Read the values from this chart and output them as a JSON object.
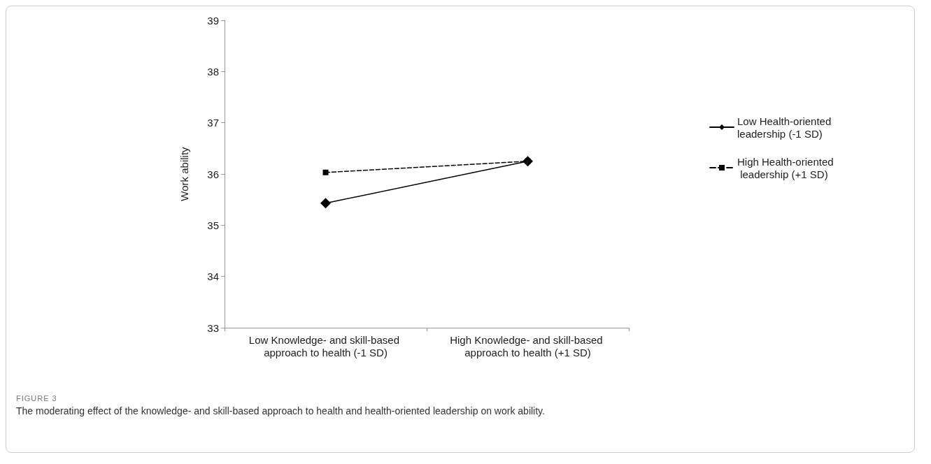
{
  "chart_data": {
    "type": "line",
    "ylabel": "Work ability",
    "categories": [
      "Low Knowledge- and skill-based approach to health (-1 SD)",
      "High Knowledge- and skill-based approach to health (+1 SD)"
    ],
    "series": [
      {
        "name": "Low Health-oriented leadership (-1 SD)",
        "color": "#000000",
        "values": [
          35.43,
          36.25
        ],
        "marker": "diamond",
        "line_style": "solid"
      },
      {
        "name": "High Health-oriented leadership (+1 SD)",
        "color": "#000000",
        "values": [
          36.03,
          36.25
        ],
        "marker": "square",
        "line_style": "dashed"
      }
    ],
    "ylim": [
      33,
      39
    ],
    "yticks": [
      33,
      34,
      35,
      36,
      37,
      38,
      39
    ],
    "grid": false,
    "legend": "right",
    "annotations": [
      "FIGURE 3",
      "The moderating effect of the knowledge- and skill-based approach to health and health-oriented leadership on work ability."
    ]
  }
}
